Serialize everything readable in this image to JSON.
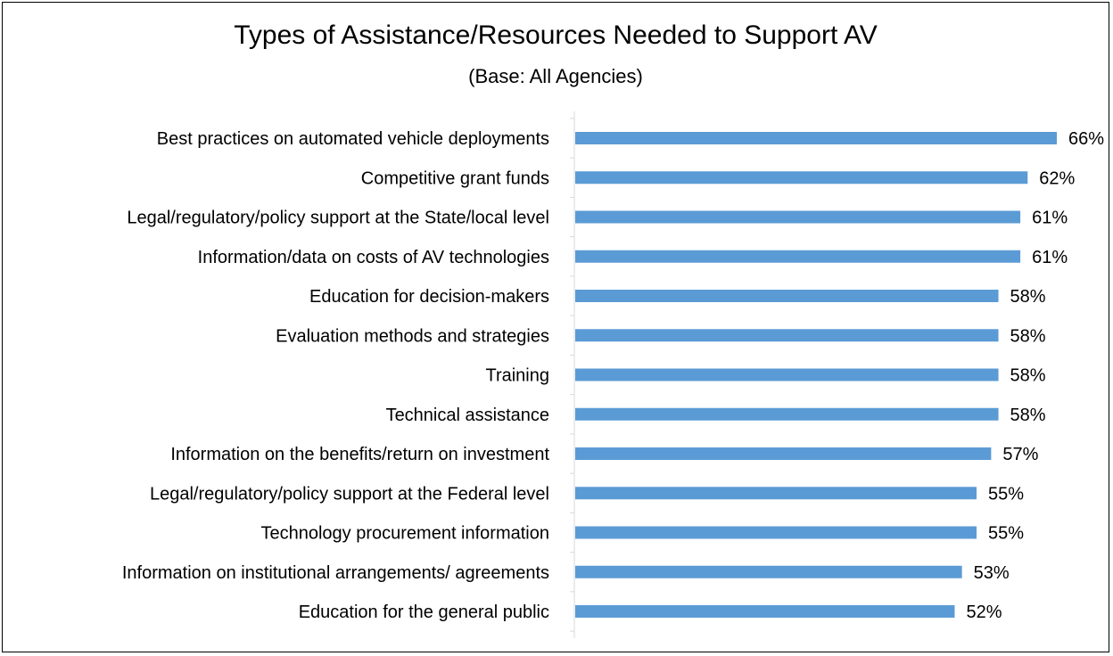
{
  "chart_data": {
    "type": "bar",
    "orientation": "horizontal",
    "title": "Types of Assistance/Resources Needed to Support AV",
    "subtitle": "(Base: All Agencies)",
    "categories": [
      "Best practices on automated vehicle deployments",
      "Competitive grant funds",
      "Legal/regulatory/policy support at the State/local level",
      "Information/data on costs of AV technologies",
      "Education for decision-makers",
      "Evaluation methods and strategies",
      "Training",
      "Technical assistance",
      "Information on the benefits/return on investment",
      "Legal/regulatory/policy support at the Federal level",
      "Technology procurement information",
      "Information on institutional arrangements/ agreements",
      "Education for the general public"
    ],
    "values": [
      66,
      62,
      61,
      61,
      58,
      58,
      58,
      58,
      57,
      55,
      55,
      53,
      52
    ],
    "value_labels": [
      "66%",
      "62%",
      "61%",
      "61%",
      "58%",
      "58%",
      "58%",
      "58%",
      "57%",
      "55%",
      "55%",
      "53%",
      "52%"
    ],
    "unit": "%",
    "xlim": [
      0,
      70
    ],
    "bar_color": "#5B9BD5",
    "grid": false,
    "legend": "none"
  }
}
